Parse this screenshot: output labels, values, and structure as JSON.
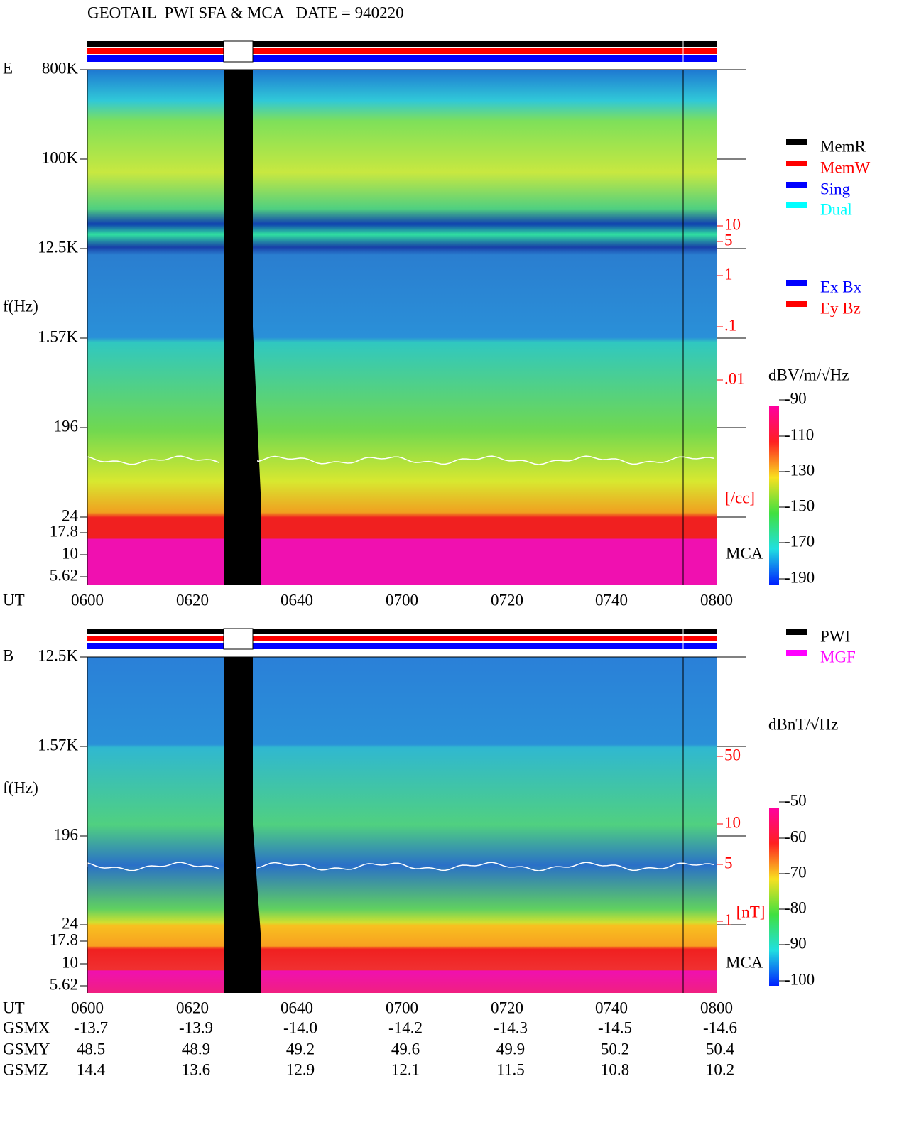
{
  "title": "GEOTAIL  PWI SFA & MCA   DATE = 940220",
  "panels": [
    {
      "label": "E",
      "y_axis_label": "f(Hz)",
      "x_axis_label": "UT",
      "y_ticks": [
        "800K",
        "100K",
        "12.5K",
        "1.57K",
        "196",
        "24",
        "17.8",
        "10",
        "5.62"
      ],
      "x_ticks": [
        "0600",
        "0620",
        "0640",
        "0700",
        "0720",
        "0740",
        "0800"
      ],
      "density_ticks": [
        "10",
        "5",
        "1",
        ".1",
        ".01"
      ],
      "density_unit": "[/cc]",
      "mca_label": "MCA",
      "legend": [
        "MemR",
        "MemW",
        "Sing",
        "Dual"
      ],
      "legend2": [
        "Ex Bx",
        "Ey Bz"
      ],
      "colorbar_unit": "dBV/m/√Hz",
      "colorbar_ticks": [
        "-90",
        "-110",
        "-130",
        "-150",
        "-170",
        "-190"
      ]
    },
    {
      "label": "B",
      "y_axis_label": "f(Hz)",
      "x_axis_label": "UT",
      "y_ticks": [
        "12.5K",
        "1.57K",
        "196",
        "24",
        "17.8",
        "10",
        "5.62"
      ],
      "x_ticks": [
        "0600",
        "0620",
        "0640",
        "0700",
        "0720",
        "0740",
        "0800"
      ],
      "density_ticks": [
        "50",
        "10",
        "5",
        "1"
      ],
      "density_unit": "[nT]",
      "mca_label": "MCA",
      "legend": [
        "PWI",
        "MGF"
      ],
      "colorbar_unit": "dBnT/√Hz",
      "colorbar_ticks": [
        "-50",
        "-60",
        "-70",
        "-80",
        "-90",
        "-100"
      ]
    }
  ],
  "orbit": {
    "rows": [
      {
        "label": "GSMX",
        "values": [
          "-13.7",
          "-13.9",
          "-14.0",
          "-14.2",
          "-14.3",
          "-14.5",
          "-14.6"
        ]
      },
      {
        "label": "GSMY",
        "values": [
          "48.5",
          "48.9",
          "49.2",
          "49.6",
          "49.9",
          "50.2",
          "50.4"
        ]
      },
      {
        "label": "GSMZ",
        "values": [
          "14.4",
          "13.6",
          "12.9",
          "12.1",
          "11.5",
          "10.8",
          "10.2"
        ]
      }
    ]
  }
}
